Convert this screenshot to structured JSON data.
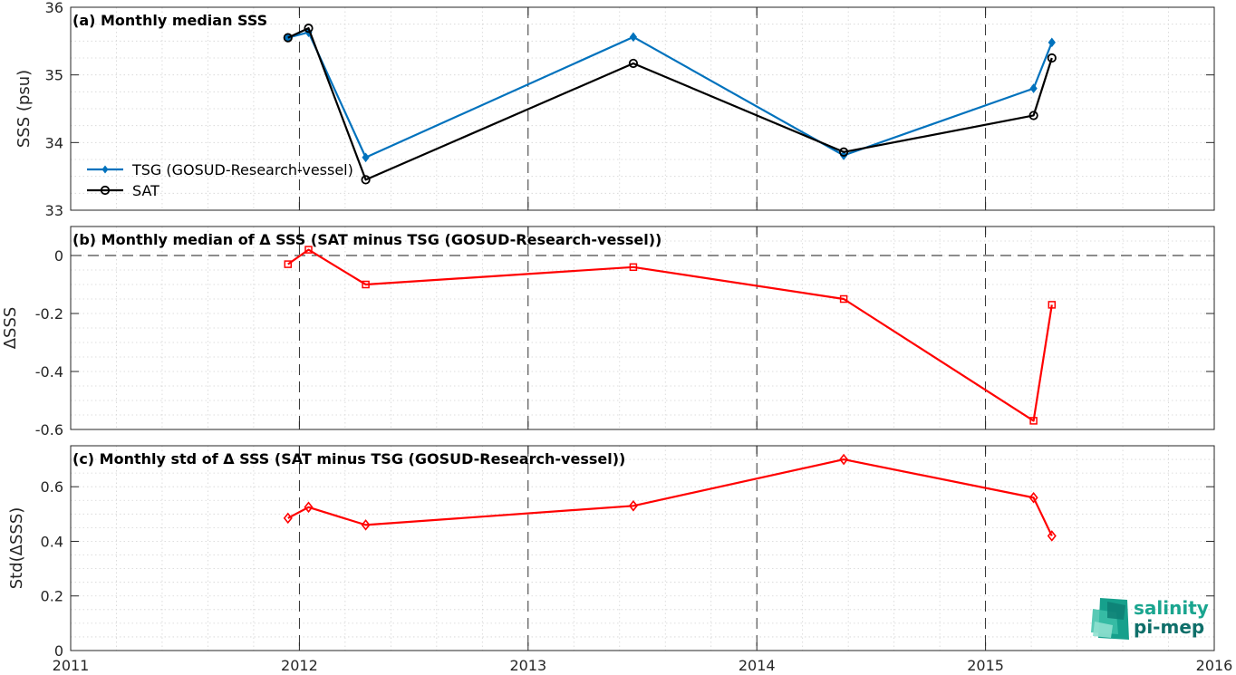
{
  "chart_data": [
    {
      "type": "line",
      "title": "(a) Monthly median SSS",
      "xlabel": "",
      "ylabel": "SSS (psu)",
      "xlim": [
        2011,
        2016
      ],
      "ylim": [
        33,
        36
      ],
      "x_ticks": [
        "2011",
        "2012",
        "2013",
        "2014",
        "2015",
        "2016"
      ],
      "y_ticks": [
        "33",
        "34",
        "35",
        "36"
      ],
      "grid": "minor dotted",
      "legend": "left",
      "x": [
        2011.95,
        2012.04,
        2012.29,
        2013.46,
        2014.38,
        2015.21,
        2015.29
      ],
      "series": [
        {
          "name": "TSG (GOSUD-Research-vessel)",
          "color": "#0072bd",
          "marker": "diamond-filled",
          "values": [
            35.55,
            35.63,
            33.78,
            35.56,
            33.81,
            34.8,
            35.48
          ]
        },
        {
          "name": "SAT",
          "color": "#000000",
          "marker": "circle",
          "values": [
            35.55,
            35.69,
            33.45,
            35.17,
            33.86,
            34.4,
            35.25
          ]
        }
      ]
    },
    {
      "type": "line",
      "title": "(b) Monthly median of Δ SSS (SAT minus TSG (GOSUD-Research-vessel))",
      "xlabel": "",
      "ylabel": "ΔSSS",
      "xlim": [
        2011,
        2016
      ],
      "ylim": [
        -0.6,
        0.1
      ],
      "y_ticks": [
        "-0.6",
        "-0.4",
        "-0.2",
        "0"
      ],
      "grid": "minor dotted",
      "x": [
        2011.95,
        2012.04,
        2012.29,
        2013.46,
        2014.38,
        2015.21,
        2015.29
      ],
      "series": [
        {
          "name": "",
          "color": "#ff0000",
          "marker": "square",
          "values": [
            -0.03,
            0.02,
            -0.1,
            -0.04,
            -0.15,
            -0.57,
            -0.17
          ]
        }
      ]
    },
    {
      "type": "line",
      "title": "(c) Monthly std of Δ SSS (SAT minus TSG (GOSUD-Research-vessel))",
      "xlabel": "",
      "ylabel": "Std(ΔSSS)",
      "xlim": [
        2011,
        2016
      ],
      "ylim": [
        0,
        0.75
      ],
      "x_ticks": [
        "2011",
        "2012",
        "2013",
        "2014",
        "2015",
        "2016"
      ],
      "y_ticks": [
        "0",
        "0.2",
        "0.4",
        "0.6"
      ],
      "grid": "minor dotted",
      "x": [
        2011.95,
        2012.04,
        2012.29,
        2013.46,
        2014.38,
        2015.21,
        2015.29
      ],
      "series": [
        {
          "name": "",
          "color": "#ff0000",
          "marker": "diamond",
          "values": [
            0.485,
            0.525,
            0.46,
            0.53,
            0.7,
            0.56,
            0.42
          ]
        }
      ]
    }
  ],
  "logo": {
    "line1": "salinity",
    "line2": "pi-mep"
  }
}
